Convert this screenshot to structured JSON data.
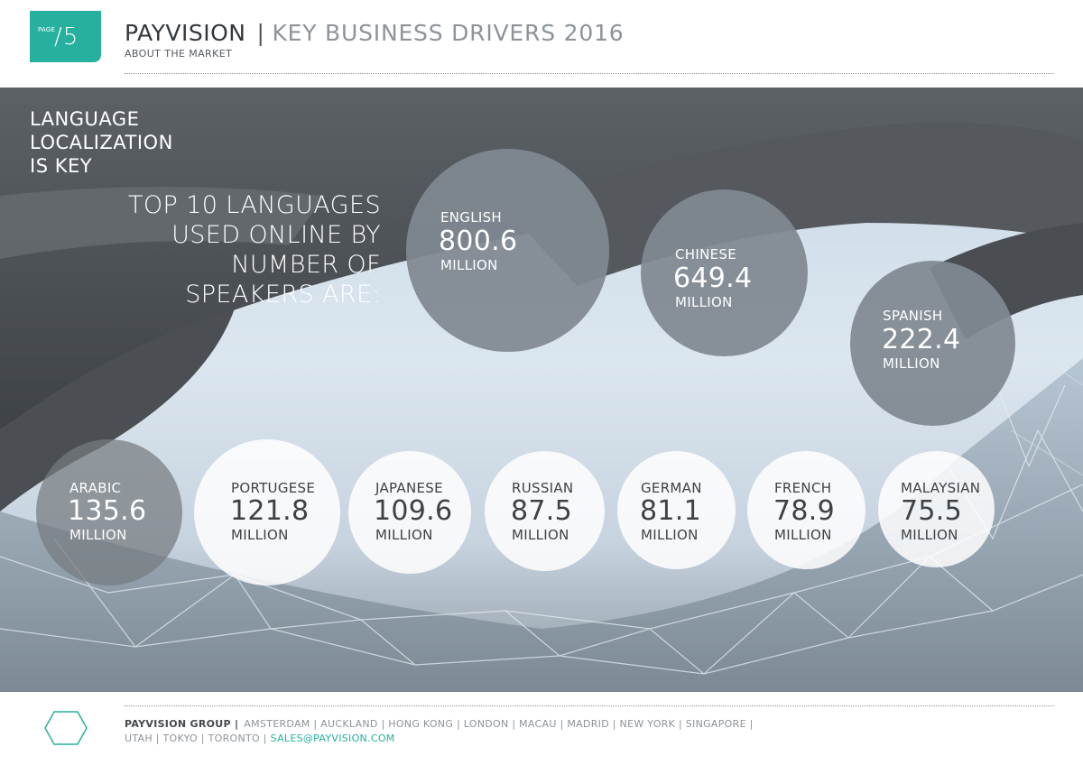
{
  "header": {
    "page_label": "PAGE",
    "page_number": "/5",
    "brand": "PAYVISION",
    "separator": "|",
    "title": "KEY BUSINESS DRIVERS 2016",
    "subtitle": "ABOUT THE MARKET"
  },
  "intro": [
    "LANGUAGE",
    "LOCALIZATION",
    "IS KEY"
  ],
  "lead": [
    "TOP 10 LANGUAGES",
    "USED ONLINE BY",
    "NUMBER OF",
    "SPEAKERS ARE:"
  ],
  "unit": "MILLION",
  "languages": [
    {
      "name": "ENGLISH",
      "value": "800.6"
    },
    {
      "name": "CHINESE",
      "value": "649.4"
    },
    {
      "name": "SPANISH",
      "value": "222.4"
    },
    {
      "name": "ARABIC",
      "value": "135.6"
    },
    {
      "name": "PORTUGESE",
      "value": "121.8"
    },
    {
      "name": "JAPANESE",
      "value": "109.6"
    },
    {
      "name": "RUSSIAN",
      "value": "87.5"
    },
    {
      "name": "GERMAN",
      "value": "81.1"
    },
    {
      "name": "FRENCH",
      "value": "78.9"
    },
    {
      "name": "MALAYSIAN",
      "value": "75.5"
    }
  ],
  "footer": {
    "icon": "hexagon-icon",
    "group": "PAYVISION GROUP |",
    "line1": "AMSTERDAM | AUCKLAND | HONG KONG | LONDON | MACAU | MADRID | NEW YORK | SINGAPORE |",
    "line2": "UTAH | TOKYO | TORONTO |",
    "email": "SALES@PAYVISION.COM"
  },
  "colors": {
    "accent": "#26b09d",
    "bubble_gray": "#80898f",
    "bubble_light": "#ffffff"
  }
}
